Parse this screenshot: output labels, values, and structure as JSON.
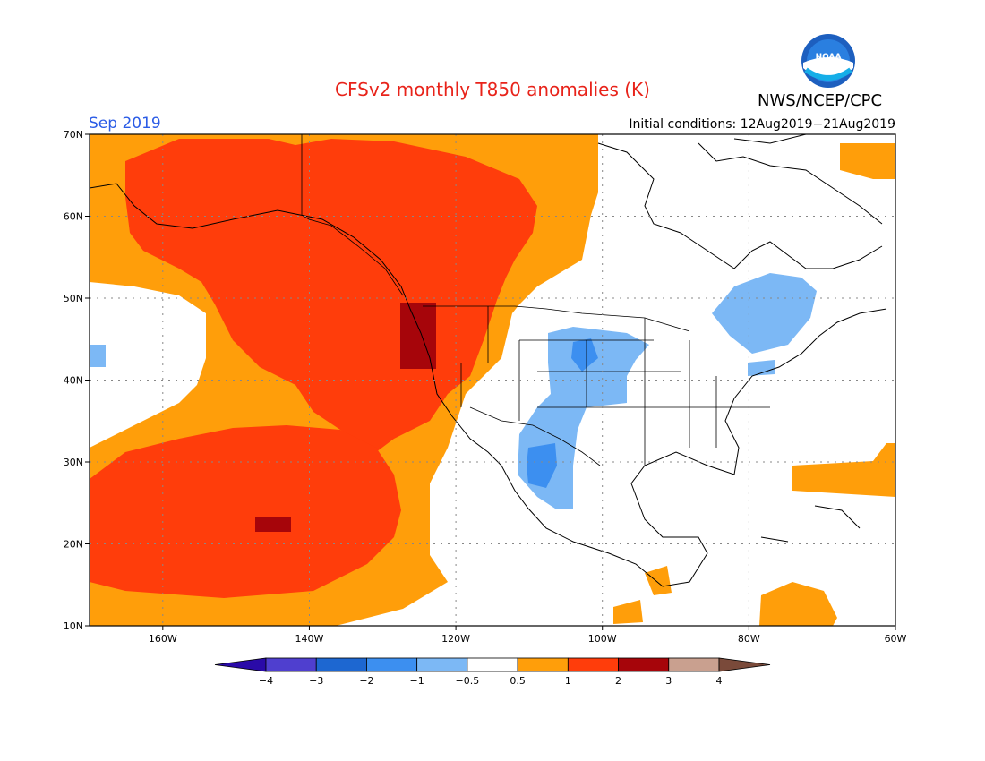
{
  "title": "CFSv2 monthly T850 anomalies (K)",
  "agency": "NWS/NCEP/CPC",
  "logo_text": "NOAA",
  "valid_month": "Sep 2019",
  "initial_conditions": "Initial conditions: 12Aug2019−21Aug2019",
  "map": {
    "projection": "lat-lon",
    "lon_range": [
      -170,
      -60
    ],
    "lat_range": [
      10,
      70
    ],
    "grid": "dotted",
    "lat_ticks": [
      {
        "value": 70,
        "label": "70N"
      },
      {
        "value": 60,
        "label": "60N"
      },
      {
        "value": 50,
        "label": "50N"
      },
      {
        "value": 40,
        "label": "40N"
      },
      {
        "value": 30,
        "label": "30N"
      },
      {
        "value": 20,
        "label": "20N"
      },
      {
        "value": 10,
        "label": "10N"
      }
    ],
    "lon_ticks": [
      {
        "value": -160,
        "label": "160W"
      },
      {
        "value": -140,
        "label": "140W"
      },
      {
        "value": -120,
        "label": "120W"
      },
      {
        "value": -100,
        "label": "100W"
      },
      {
        "value": -80,
        "label": "80W"
      },
      {
        "value": -60,
        "label": "60W"
      }
    ]
  },
  "colorbar": {
    "levels": [
      "−4",
      "−3",
      "−2",
      "−1",
      "−0.5",
      "0.5",
      "1",
      "2",
      "3",
      "4"
    ],
    "colors": [
      "#2a0aa8",
      "#4f3fcf",
      "#1d67d1",
      "#3c8ff0",
      "#7cb8f5",
      "#ffffff",
      "#ff9e0a",
      "#ff3d0b",
      "#a6050a",
      "#c9a08f",
      "#7a4a3a"
    ]
  },
  "anomaly_colors": {
    "weak_warm": "#ff9e0a",
    "warm": "#ff3d0b",
    "strong_warm": "#a6050a",
    "weak_cold": "#7cb8f5",
    "cold": "#3c8ff0",
    "strong_cold_cyan": "#00ccff"
  }
}
